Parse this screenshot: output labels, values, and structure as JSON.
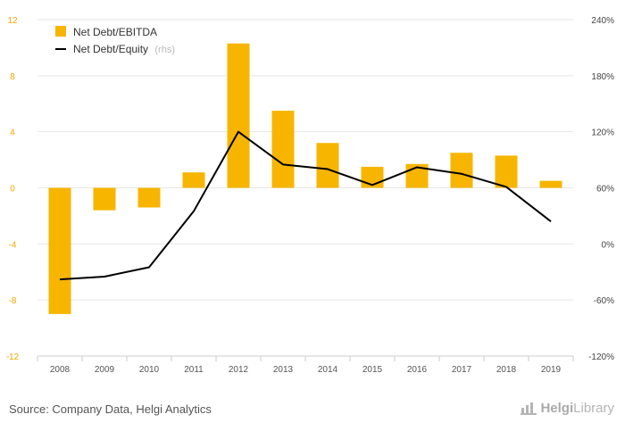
{
  "chart_data": {
    "type": "bar",
    "categories": [
      "2008",
      "2009",
      "2010",
      "2011",
      "2012",
      "2013",
      "2014",
      "2015",
      "2016",
      "2017",
      "2018",
      "2019"
    ],
    "series": [
      {
        "name": "Net Debt/EBITDA",
        "type": "bar",
        "axis": "left",
        "color": "#f7b500",
        "values": [
          -9.0,
          -1.6,
          -1.4,
          1.1,
          10.3,
          5.5,
          3.2,
          1.5,
          1.7,
          2.5,
          2.3,
          0.5
        ]
      },
      {
        "name": "Net Debt/Equity",
        "name_note": "(rhs)",
        "type": "line",
        "axis": "right",
        "color": "#000000",
        "values": [
          -38,
          -35,
          -25,
          35,
          120,
          85,
          80,
          63,
          82,
          75,
          61,
          24
        ]
      }
    ],
    "y_left": {
      "ylim": [
        -12,
        12
      ],
      "ticks": [
        "12",
        "8",
        "4",
        "0",
        "-4",
        "-8",
        "-12"
      ]
    },
    "y_right": {
      "ylim": [
        -120,
        240
      ],
      "ticks": [
        "240%",
        "180%",
        "120%",
        "60%",
        "0%",
        "-60%",
        "-120%"
      ]
    },
    "grid": true,
    "legend": "top-left"
  },
  "footer": {
    "source": "Source: Company Data, Helgi Analytics",
    "brand_a": "Helgi",
    "brand_b": "Library"
  }
}
